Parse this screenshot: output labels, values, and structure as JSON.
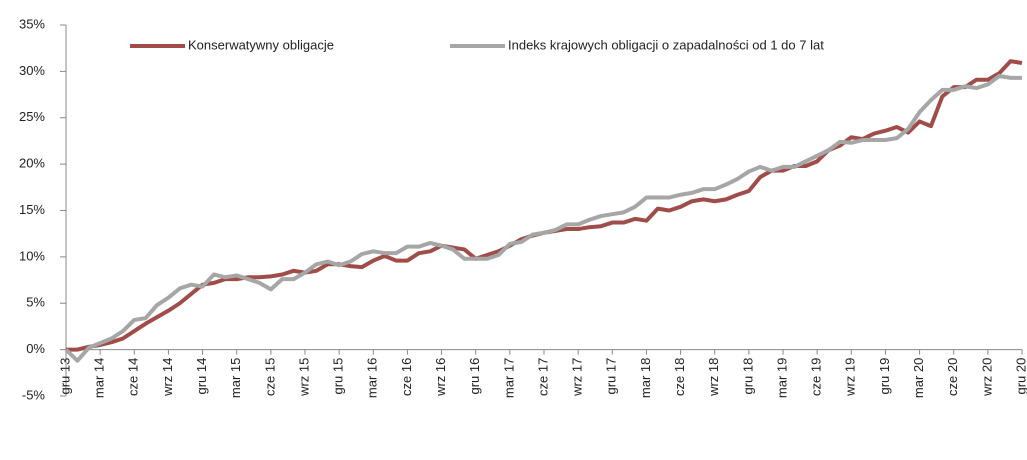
{
  "chart_data": {
    "type": "line",
    "categories": [
      "gru 13",
      null,
      null,
      "mar 14",
      null,
      null,
      "cze 14",
      null,
      null,
      "wrz 14",
      null,
      null,
      "gru 14",
      null,
      null,
      "mar 15",
      null,
      null,
      "cze 15",
      null,
      null,
      "wrz 15",
      null,
      null,
      "gru 15",
      null,
      null,
      "mar 16",
      null,
      null,
      "cze 16",
      null,
      null,
      "wrz 16",
      null,
      null,
      "gru 16",
      null,
      null,
      "mar 17",
      null,
      null,
      "cze 17",
      null,
      null,
      "wrz 17",
      null,
      null,
      "gru 17",
      null,
      null,
      "mar 18",
      null,
      null,
      "cze 18",
      null,
      null,
      "wrz 18",
      null,
      null,
      "gru 18",
      null,
      null,
      "mar 19",
      null,
      null,
      "cze 19",
      null,
      null,
      "wrz 19",
      null,
      null,
      "gru 19",
      null,
      null,
      "mar 20",
      null,
      null,
      "cze 20",
      null,
      null,
      "wrz 20",
      null,
      null,
      "gru 20"
    ],
    "series": [
      {
        "name": "Konserwatywny obligacje",
        "color": "#a04d4a",
        "values": [
          0,
          0,
          0.3,
          0.5,
          0.8,
          1.2,
          2.0,
          2.8,
          3.5,
          4.2,
          5.0,
          6.0,
          7.0,
          7.2,
          7.6,
          7.6,
          7.8,
          7.8,
          7.9,
          8.1,
          8.5,
          8.3,
          8.5,
          9.2,
          9.2,
          9.0,
          8.9,
          9.6,
          10.1,
          9.6,
          9.6,
          10.4,
          10.6,
          11.2,
          11.0,
          10.8,
          9.8,
          10.2,
          10.6,
          11.2,
          11.9,
          12.3,
          12.6,
          12.8,
          13.0,
          13.0,
          13.2,
          13.3,
          13.7,
          13.7,
          14.1,
          13.9,
          15.2,
          15.0,
          15.4,
          16.0,
          16.2,
          16.0,
          16.2,
          16.7,
          17.1,
          18.6,
          19.3,
          19.3,
          19.8,
          19.8,
          20.3,
          21.5,
          22.0,
          22.9,
          22.7,
          23.3,
          23.6,
          24.0,
          23.4,
          24.6,
          24.1,
          27.3,
          28.3,
          28.3,
          29.1,
          29.1,
          29.8,
          31.1,
          30.9
        ]
      },
      {
        "name": "Indeks krajowych obligacji o zapadalności od 1 do 7 lat",
        "color": "#a6a6a6",
        "values": [
          0,
          -1.2,
          0.2,
          0.7,
          1.2,
          2.0,
          3.2,
          3.4,
          4.8,
          5.6,
          6.6,
          7.0,
          6.8,
          8.1,
          7.8,
          8.0,
          7.6,
          7.2,
          6.5,
          7.6,
          7.6,
          8.3,
          9.2,
          9.5,
          9.1,
          9.5,
          10.3,
          10.6,
          10.4,
          10.4,
          11.1,
          11.1,
          11.5,
          11.2,
          10.8,
          9.8,
          9.8,
          9.8,
          10.2,
          11.4,
          11.6,
          12.4,
          12.6,
          12.9,
          13.5,
          13.5,
          14.0,
          14.4,
          14.6,
          14.8,
          15.4,
          16.4,
          16.4,
          16.4,
          16.7,
          16.9,
          17.3,
          17.3,
          17.8,
          18.4,
          19.2,
          19.7,
          19.3,
          19.7,
          19.7,
          20.3,
          20.9,
          21.5,
          22.4,
          22.3,
          22.6,
          22.6,
          22.6,
          22.8,
          23.8,
          25.6,
          26.9,
          28.0,
          28.0,
          28.4,
          28.2,
          28.6,
          29.5,
          29.3,
          29.3
        ]
      }
    ],
    "ylim": [
      -5,
      35
    ],
    "yticks": [
      {
        "value": -5,
        "label": "-5%"
      },
      {
        "value": 0,
        "label": "0%"
      },
      {
        "value": 5,
        "label": "5%"
      },
      {
        "value": 10,
        "label": "10%"
      },
      {
        "value": 15,
        "label": "15%"
      },
      {
        "value": 20,
        "label": "20%"
      },
      {
        "value": 25,
        "label": "25%"
      },
      {
        "value": 30,
        "label": "30%"
      },
      {
        "value": 35,
        "label": "35%"
      }
    ],
    "legend": "top"
  }
}
